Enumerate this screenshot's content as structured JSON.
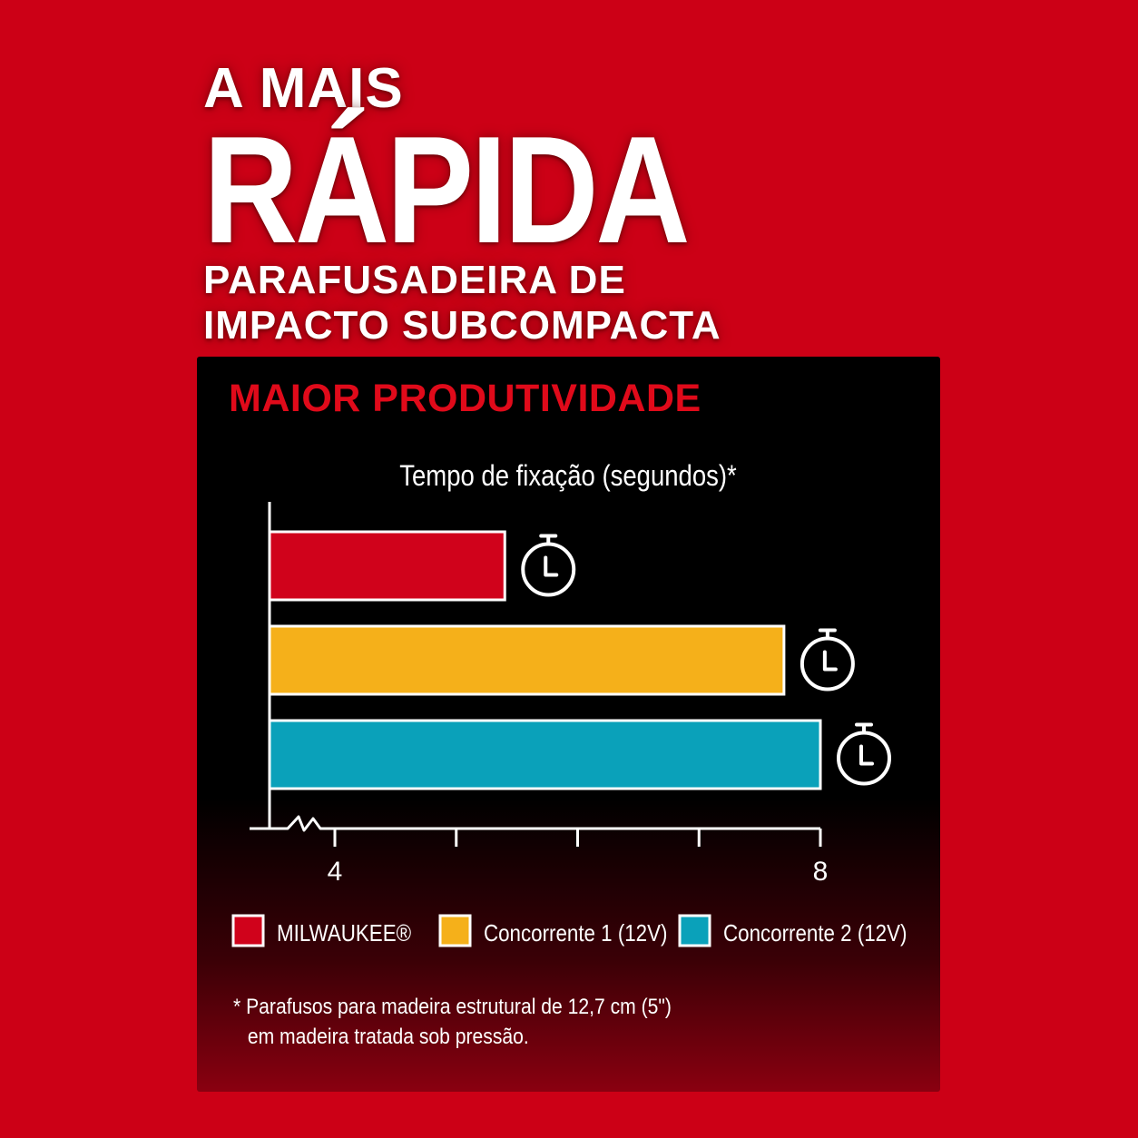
{
  "headline": {
    "line1": "A MAIS",
    "line2": "RÁPIDA",
    "line3": "PARAFUSADEIRA DE",
    "line4": "IMPACTO SUBCOMPACTA"
  },
  "panel": {
    "title": "MAIOR PRODUTIVIDADE"
  },
  "chart_data": {
    "type": "bar",
    "orientation": "horizontal",
    "title": "Tempo de fixação (segundos)*",
    "xlabel": "",
    "ylabel": "",
    "xlim": [
      3.45,
      8
    ],
    "x_ticks": [
      4,
      5,
      6,
      7,
      8
    ],
    "x_tick_labels": [
      "4",
      "",
      "",
      "",
      "8"
    ],
    "axis_break": true,
    "series": [
      {
        "name": "MILWAUKEE®",
        "value": 5.4,
        "color": "#d0021b"
      },
      {
        "name": "Concorrente 1 (12V)",
        "value": 7.7,
        "color": "#f5b01a"
      },
      {
        "name": "Concorrente 2 (12V)",
        "value": 8.0,
        "color": "#0aa1ba"
      }
    ],
    "marker_icon": "stopwatch-icon",
    "legend_position": "bottom",
    "grid": false
  },
  "footnote": {
    "line1": "* Parafusos para madeira estrutural de 12,7 cm (5\")",
    "line2": "em madeira tratada sob pressão."
  }
}
